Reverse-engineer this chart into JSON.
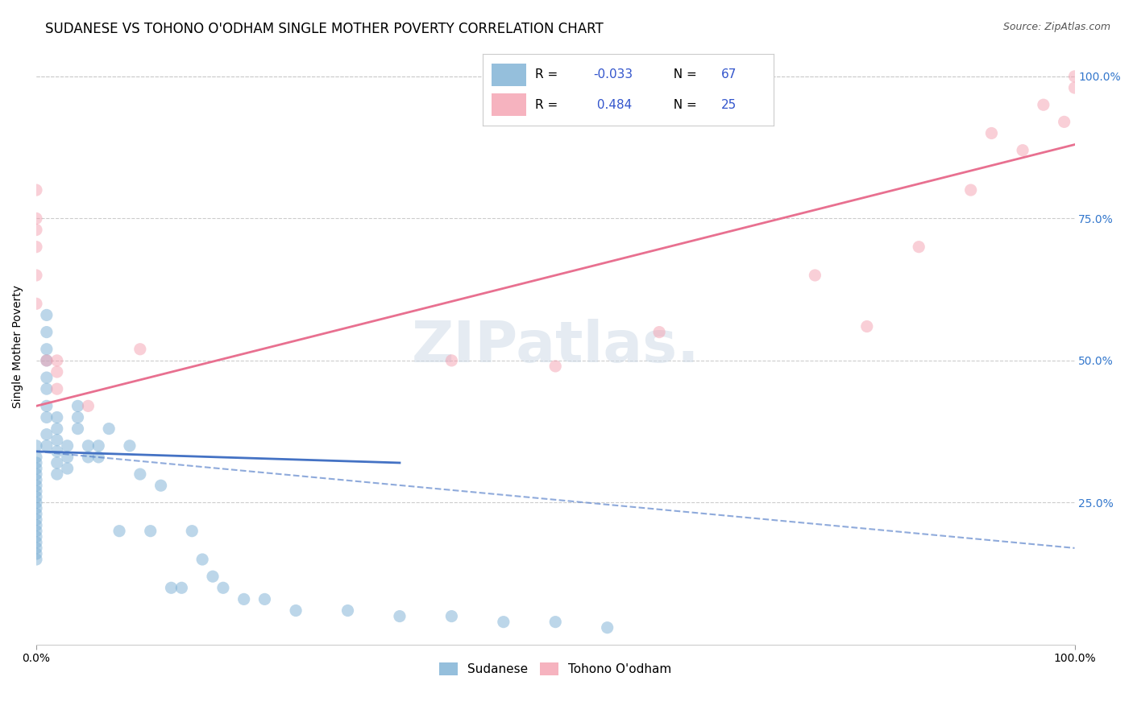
{
  "title": "SUDANESE VS TOHONO O'ODHAM SINGLE MOTHER POVERTY CORRELATION CHART",
  "source": "Source: ZipAtlas.com",
  "xlabel": "",
  "ylabel": "Single Mother Poverty",
  "xlim": [
    0.0,
    1.0
  ],
  "ylim": [
    0.0,
    1.0
  ],
  "xtick_labels": [
    "0.0%",
    "100.0%"
  ],
  "ytick_labels": [
    "25.0%",
    "50.0%",
    "75.0%",
    "100.0%"
  ],
  "right_ytick_labels": [
    "25.0%",
    "50.0%",
    "75.0%",
    "100.0%"
  ],
  "legend_r1": "R = -0.033",
  "legend_n1": "N = 67",
  "legend_r2": "R =  0.484",
  "legend_n2": "N = 25",
  "blue_color": "#7bafd4",
  "pink_color": "#f4a0b0",
  "blue_line_color": "#4472c4",
  "pink_line_color": "#e87090",
  "watermark": "ZIPatlas.",
  "sudanese_x": [
    0.0,
    0.0,
    0.0,
    0.0,
    0.0,
    0.0,
    0.0,
    0.0,
    0.0,
    0.0,
    0.0,
    0.0,
    0.0,
    0.0,
    0.0,
    0.0,
    0.0,
    0.0,
    0.0,
    0.0,
    0.01,
    0.01,
    0.01,
    0.01,
    0.01,
    0.01,
    0.01,
    0.01,
    0.01,
    0.01,
    0.02,
    0.02,
    0.02,
    0.02,
    0.02,
    0.02,
    0.03,
    0.03,
    0.03,
    0.04,
    0.04,
    0.04,
    0.05,
    0.05,
    0.06,
    0.06,
    0.07,
    0.08,
    0.09,
    0.1,
    0.11,
    0.12,
    0.13,
    0.14,
    0.15,
    0.16,
    0.17,
    0.18,
    0.2,
    0.22,
    0.25,
    0.3,
    0.35,
    0.4,
    0.45,
    0.5,
    0.55
  ],
  "sudanese_y": [
    0.35,
    0.33,
    0.32,
    0.31,
    0.3,
    0.29,
    0.28,
    0.27,
    0.26,
    0.25,
    0.24,
    0.23,
    0.22,
    0.21,
    0.2,
    0.19,
    0.18,
    0.17,
    0.16,
    0.15,
    0.58,
    0.55,
    0.52,
    0.5,
    0.47,
    0.45,
    0.42,
    0.4,
    0.37,
    0.35,
    0.4,
    0.38,
    0.36,
    0.34,
    0.32,
    0.3,
    0.35,
    0.33,
    0.31,
    0.42,
    0.4,
    0.38,
    0.35,
    0.33,
    0.35,
    0.33,
    0.38,
    0.2,
    0.35,
    0.3,
    0.2,
    0.28,
    0.1,
    0.1,
    0.2,
    0.15,
    0.12,
    0.1,
    0.08,
    0.08,
    0.06,
    0.06,
    0.05,
    0.05,
    0.04,
    0.04,
    0.03
  ],
  "tohono_x": [
    0.0,
    0.0,
    0.0,
    0.0,
    0.0,
    0.0,
    0.01,
    0.02,
    0.02,
    0.02,
    0.05,
    0.1,
    0.4,
    0.5,
    0.6,
    0.75,
    0.8,
    0.85,
    0.9,
    0.92,
    0.95,
    0.97,
    0.99,
    1.0,
    1.0
  ],
  "tohono_y": [
    0.75,
    0.73,
    0.8,
    0.65,
    0.6,
    0.7,
    0.5,
    0.5,
    0.45,
    0.48,
    0.42,
    0.52,
    0.5,
    0.49,
    0.55,
    0.65,
    0.56,
    0.7,
    0.8,
    0.9,
    0.87,
    0.95,
    0.92,
    1.0,
    0.98
  ],
  "blue_trend_x": [
    0.0,
    1.0
  ],
  "blue_trend_y_start": 0.34,
  "blue_trend_y_end": 0.3,
  "blue_dash_trend_y_start": 0.34,
  "blue_dash_trend_y_end": 0.17,
  "pink_trend_x": [
    0.0,
    1.0
  ],
  "pink_trend_y_start": 0.42,
  "pink_trend_y_end": 0.88,
  "marker_size": 120,
  "marker_alpha": 0.5,
  "title_fontsize": 12,
  "axis_label_fontsize": 10,
  "tick_fontsize": 10,
  "source_fontsize": 9
}
